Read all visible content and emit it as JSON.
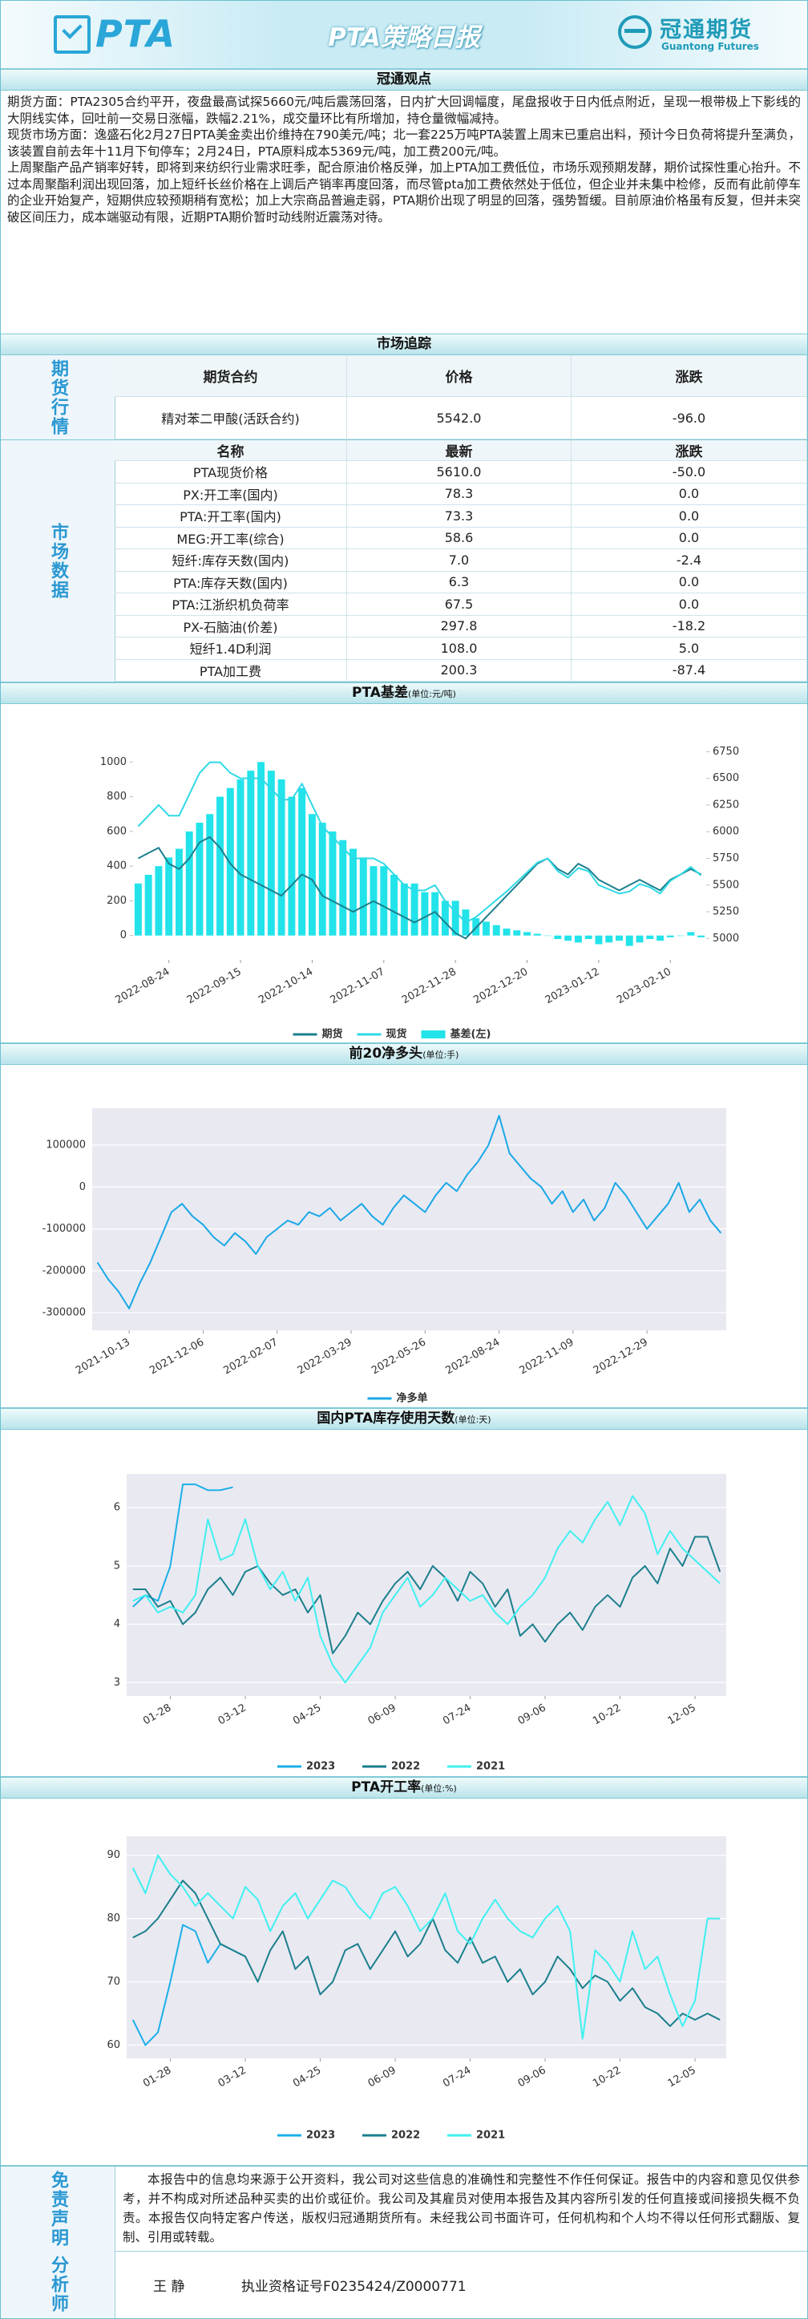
{
  "header": {
    "logo": "PTA",
    "title": "PTA策略日报",
    "company": "冠通期货",
    "company_en": "Guantong Futures"
  },
  "view": {
    "title": "冠通观点",
    "paragraphs": [
      "期货方面：PTA2305合约平开，夜盘最高试探5660元/吨后震荡回落，日内扩大回调幅度，尾盘报收于日内低点附近，呈现一根带极上下影线的大阴线实体，回吐前一交易日涨幅，跌幅2.21%，成交量环比有所增加，持仓量微幅减持。",
      "现货市场方面：逸盛石化2月27日PTA美金卖出价维持在790美元/吨；北一套225万吨PTA装置上周末已重启出料，预计今日负荷将提升至满负，该装置自前去年十11月下旬停车；2月24日，PTA原料成本5369元/吨，加工费200元/吨。",
      "上周聚酯产品产销率好转，即将到来纺织行业需求旺季，配合原油价格反弹，加上PTA加工费低位，市场乐观预期发酵，期价试探性重心抬升。不过本周聚酯利润出现回落，加上短纤长丝价格在上调后产销率再度回落，而尽管pta加工费依然处于低位，但企业并未集中检修，反而有此前停车的企业开始复产，短期供应较预期稍有宽松；加上大宗商品普遍走弱，PTA期价出现了明显的回落，强势暂缓。目前原油价格虽有反复，但并未突破区间压力，成本端驱动有限，近期PTA期价暂时动线附近震荡对待。"
    ]
  },
  "market": {
    "title": "市场追踪",
    "futures": {
      "label": "期货行情",
      "columns": [
        "期货合约",
        "价格",
        "涨跌"
      ],
      "rows": [
        [
          "精对苯二甲酸(活跃合约)",
          "5542.0",
          "-96.0"
        ]
      ]
    },
    "data": {
      "label": "市场数据",
      "columns": [
        "名称",
        "最新",
        "涨跌"
      ],
      "rows": [
        [
          "PTA现货价格",
          "5610.0",
          "-50.0"
        ],
        [
          "PX:开工率(国内)",
          "78.3",
          "0.0"
        ],
        [
          "PTA:开工率(国内)",
          "73.3",
          "0.0"
        ],
        [
          "MEG:开工率(综合)",
          "58.6",
          "0.0"
        ],
        [
          "短纤:库存天数(国内)",
          "7.0",
          "-2.4"
        ],
        [
          "PTA:库存天数(国内)",
          "6.3",
          "0.0"
        ],
        [
          "PTA:江浙织机负荷率",
          "67.5",
          "0.0"
        ],
        [
          "PX-石脑油(价差)",
          "297.8",
          "-18.2"
        ],
        [
          "短纤1.4D利润",
          "108.0",
          "5.0"
        ],
        [
          "PTA加工费",
          "200.3",
          "-87.4"
        ]
      ]
    }
  },
  "chart_data": [
    {
      "type": "combo",
      "title": "PTA基差",
      "unit": "(单位:元/吨)",
      "grid": false,
      "categories": [
        null,
        null,
        null,
        "2022-08-24",
        null,
        null,
        null,
        null,
        null,
        null,
        "2022-09-15",
        null,
        null,
        null,
        null,
        null,
        null,
        "2022-10-14",
        null,
        null,
        null,
        null,
        null,
        null,
        "2022-11-07",
        null,
        null,
        null,
        null,
        null,
        null,
        "2022-11-28",
        null,
        null,
        null,
        null,
        null,
        null,
        "2022-12-20",
        null,
        null,
        null,
        null,
        null,
        null,
        "2023-01-12",
        null,
        null,
        null,
        null,
        null,
        null,
        "2023-02-10",
        null,
        null,
        null
      ],
      "ylim": [
        -140,
        1140
      ],
      "yticks": [
        0,
        200,
        400,
        600,
        800,
        1000
      ],
      "y2lim": [
        4800,
        6880
      ],
      "y2ticks": [
        5000,
        5250,
        5500,
        5750,
        6000,
        6250,
        6500,
        6750
      ],
      "series": [
        {
          "name": "期货",
          "type": "line",
          "axis": "y2",
          "color": "#1b7f8c",
          "values": [
            5750,
            5800,
            5850,
            5700,
            5650,
            5750,
            5900,
            5950,
            5850,
            5700,
            5600,
            5550,
            5500,
            5450,
            5400,
            5500,
            5600,
            5550,
            5400,
            5350,
            5300,
            5250,
            5300,
            5350,
            5300,
            5250,
            5200,
            5150,
            5200,
            5250,
            5150,
            5050,
            5000,
            5100,
            5200,
            5300,
            5400,
            5500,
            5600,
            5700,
            5750,
            5650,
            5600,
            5700,
            5650,
            5550,
            5500,
            5450,
            5500,
            5550,
            5500,
            5450,
            5550,
            5600,
            5650,
            5600
          ]
        },
        {
          "name": "现货",
          "type": "line",
          "axis": "y2",
          "color": "#2fd9e6",
          "values": [
            6050,
            6150,
            6250,
            6150,
            6150,
            6350,
            6550,
            6650,
            6650,
            6550,
            6500,
            6500,
            6500,
            6400,
            6300,
            6300,
            6450,
            6250,
            6050,
            5950,
            5850,
            5750,
            5750,
            5750,
            5700,
            5600,
            5500,
            5450,
            5450,
            5500,
            5350,
            5250,
            5150,
            5200,
            5280,
            5360,
            5440,
            5530,
            5620,
            5710,
            5750,
            5630,
            5570,
            5660,
            5630,
            5500,
            5460,
            5420,
            5440,
            5510,
            5480,
            5420,
            5540,
            5600,
            5670,
            5590
          ]
        },
        {
          "name": "基差(左)",
          "type": "bar",
          "color": "#22e3ea",
          "values": [
            300,
            350,
            400,
            450,
            500,
            600,
            650,
            700,
            800,
            850,
            900,
            950,
            1000,
            950,
            900,
            800,
            850,
            700,
            650,
            600,
            550,
            500,
            450,
            400,
            400,
            350,
            300,
            300,
            250,
            250,
            200,
            200,
            150,
            100,
            80,
            60,
            40,
            30,
            20,
            10,
            0,
            -20,
            -30,
            -40,
            -20,
            -50,
            -40,
            -30,
            -60,
            -40,
            -20,
            -30,
            -10,
            0,
            20,
            -10
          ]
        }
      ]
    },
    {
      "type": "line",
      "title": "前20净多头",
      "unit": "(单位:手)",
      "grid": true,
      "background": "#e9e9f2",
      "categories": [
        null,
        null,
        null,
        "2021-10-13",
        null,
        null,
        null,
        null,
        null,
        null,
        "2021-12-06",
        null,
        null,
        null,
        null,
        null,
        null,
        "2022-02-07",
        null,
        null,
        null,
        null,
        null,
        null,
        "2022-03-29",
        null,
        null,
        null,
        null,
        null,
        null,
        "2022-05-26",
        null,
        null,
        null,
        null,
        null,
        null,
        "2022-08-24",
        null,
        null,
        null,
        null,
        null,
        null,
        "2022-11-09",
        null,
        null,
        null,
        null,
        null,
        null,
        "2022-12-29",
        null,
        null,
        null,
        null,
        null,
        null,
        null
      ],
      "ylim": [
        -342000,
        188000
      ],
      "yticks": [
        -300000,
        -200000,
        -100000,
        0,
        100000
      ],
      "series": [
        {
          "name": "净多单",
          "color": "#1aa8e6",
          "values": [
            -180000,
            -220000,
            -250000,
            -290000,
            -230000,
            -180000,
            -120000,
            -60000,
            -40000,
            -70000,
            -90000,
            -120000,
            -140000,
            -110000,
            -130000,
            -160000,
            -120000,
            -100000,
            -80000,
            -90000,
            -60000,
            -70000,
            -50000,
            -80000,
            -60000,
            -40000,
            -70000,
            -90000,
            -50000,
            -20000,
            -40000,
            -60000,
            -20000,
            10000,
            -10000,
            30000,
            60000,
            100000,
            170000,
            80000,
            50000,
            20000,
            0,
            -40000,
            -10000,
            -60000,
            -30000,
            -80000,
            -50000,
            10000,
            -20000,
            -60000,
            -100000,
            -70000,
            -40000,
            10000,
            -60000,
            -30000,
            -80000,
            -110000
          ]
        }
      ]
    },
    {
      "type": "line",
      "title": "国内PTA库存使用天数",
      "unit": "(单位:天)",
      "grid": true,
      "background": "#e9e9f2",
      "categories": [
        null,
        null,
        null,
        "01-28",
        null,
        null,
        null,
        null,
        null,
        "03-12",
        null,
        null,
        null,
        null,
        null,
        "04-25",
        null,
        null,
        null,
        null,
        null,
        "06-09",
        null,
        null,
        null,
        null,
        null,
        "07-24",
        null,
        null,
        null,
        null,
        null,
        "09-06",
        null,
        null,
        null,
        null,
        null,
        "10-22",
        null,
        null,
        null,
        null,
        null,
        "12-05",
        null,
        null
      ],
      "ylim": [
        2.77,
        6.58
      ],
      "yticks": [
        3,
        4,
        5,
        6
      ],
      "series": [
        {
          "name": "2023",
          "color": "#1ab0e8",
          "values": [
            4.3,
            4.5,
            4.4,
            5.0,
            6.4,
            6.4,
            6.3,
            6.3,
            6.35,
            null,
            null,
            null,
            null,
            null,
            null,
            null,
            null,
            null,
            null,
            null,
            null,
            null,
            null,
            null,
            null,
            null,
            null,
            null,
            null,
            null,
            null,
            null,
            null,
            null,
            null,
            null,
            null,
            null,
            null,
            null,
            null,
            null,
            null,
            null,
            null,
            null,
            null,
            null
          ]
        },
        {
          "name": "2022",
          "color": "#1b7f8c",
          "values": [
            4.6,
            4.6,
            4.3,
            4.4,
            4.0,
            4.2,
            4.6,
            4.8,
            4.5,
            4.9,
            5.0,
            4.7,
            4.5,
            4.6,
            4.2,
            4.5,
            3.5,
            3.8,
            4.2,
            4.0,
            4.4,
            4.7,
            4.9,
            4.6,
            5.0,
            4.8,
            4.4,
            4.9,
            4.7,
            4.3,
            4.6,
            3.8,
            4.0,
            3.7,
            4.0,
            4.2,
            3.9,
            4.3,
            4.5,
            4.3,
            4.8,
            5.0,
            4.7,
            5.3,
            5.0,
            5.5,
            5.5,
            4.9
          ]
        },
        {
          "name": "2021",
          "color": "#3ff0f0",
          "values": [
            4.4,
            4.5,
            4.2,
            4.3,
            4.2,
            4.5,
            5.8,
            5.1,
            5.2,
            5.8,
            5.0,
            4.6,
            4.9,
            4.4,
            4.8,
            3.8,
            3.3,
            3.0,
            3.3,
            3.6,
            4.2,
            4.5,
            4.8,
            4.3,
            4.5,
            4.8,
            4.6,
            4.4,
            4.5,
            4.2,
            4.0,
            4.3,
            4.5,
            4.8,
            5.3,
            5.6,
            5.4,
            5.8,
            6.1,
            5.7,
            6.2,
            5.9,
            5.2,
            5.6,
            5.3,
            5.1,
            4.9,
            4.7
          ]
        }
      ]
    },
    {
      "type": "line",
      "title": "PTA开工率",
      "unit": "(单位:%)",
      "grid": true,
      "background": "#e9e9f2",
      "categories": [
        null,
        null,
        null,
        "01-28",
        null,
        null,
        null,
        null,
        null,
        "03-12",
        null,
        null,
        null,
        null,
        null,
        "04-25",
        null,
        null,
        null,
        null,
        null,
        "06-09",
        null,
        null,
        null,
        null,
        null,
        "07-24",
        null,
        null,
        null,
        null,
        null,
        "09-06",
        null,
        null,
        null,
        null,
        null,
        "10-22",
        null,
        null,
        null,
        null,
        null,
        "12-05",
        null,
        null
      ],
      "ylim": [
        57.9,
        93
      ],
      "yticks": [
        60,
        70,
        80,
        90
      ],
      "series": [
        {
          "name": "2023",
          "color": "#1ab0e8",
          "values": [
            64,
            60,
            62,
            70,
            79,
            78,
            73,
            76,
            75,
            74,
            null,
            null,
            null,
            null,
            null,
            null,
            null,
            null,
            null,
            null,
            null,
            null,
            null,
            null,
            null,
            null,
            null,
            null,
            null,
            null,
            null,
            null,
            null,
            null,
            null,
            null,
            null,
            null,
            null,
            null,
            null,
            null,
            null,
            null,
            null,
            null,
            null,
            null
          ]
        },
        {
          "name": "2022",
          "color": "#1b7f8c",
          "values": [
            77,
            78,
            80,
            83,
            86,
            84,
            80,
            76,
            75,
            74,
            70,
            75,
            78,
            72,
            74,
            68,
            70,
            75,
            76,
            72,
            75,
            78,
            74,
            76,
            80,
            75,
            73,
            77,
            73,
            74,
            70,
            72,
            68,
            70,
            74,
            72,
            69,
            71,
            70,
            67,
            69,
            66,
            65,
            63,
            65,
            64,
            65,
            64
          ]
        },
        {
          "name": "2021",
          "color": "#3ff0f0",
          "values": [
            88,
            84,
            90,
            87,
            85,
            82,
            84,
            82,
            80,
            85,
            83,
            78,
            82,
            84,
            80,
            83,
            86,
            85,
            82,
            80,
            84,
            85,
            82,
            78,
            80,
            84,
            78,
            76,
            80,
            83,
            80,
            78,
            77,
            80,
            82,
            78,
            61,
            75,
            73,
            70,
            78,
            72,
            74,
            68,
            63,
            67,
            80,
            80
          ]
        }
      ]
    }
  ],
  "disclaimer": {
    "label": "免责声明",
    "text": "本报告中的信息均来源于公开资料，我公司对这些信息的准确性和完整性不作任何保证。报告中的内容和意见仅供参考，并不构成对所述品种买卖的出价或征价。我公司及其雇员对使用本报告及其内容所引发的任何直接或间接损失概不负责。本报告仅向特定客户传送，版权归冠通期货所有。未经我公司书面许可，任何机构和个人均不得以任何形式翻版、复制、引用或转载。"
  },
  "analyst": {
    "label": "分析师",
    "name": "王 静",
    "license": "执业资格证号F0235424/Z0000771"
  }
}
